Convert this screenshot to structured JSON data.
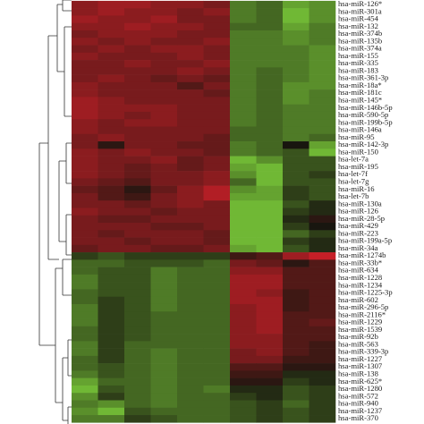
{
  "chart_data": {
    "type": "heatmap",
    "rows": [
      "hsa-miR-126*",
      "hsa-miR-301a",
      "hsa-miR-454",
      "hsa-miR-132",
      "hsa-miR-374b",
      "hsa-miR-135b",
      "hsa-miR-374a",
      "hsa-miR-155",
      "hsa-miR-335",
      "hsa-miR-183",
      "hsa-miR-361-3p",
      "hsa-miR-18a*",
      "hsa-miR-181c",
      "hsa-miR-145*",
      "hsa-miR-146b-5p",
      "hsa-miR-590-5p",
      "hsa-miR-199b-5p",
      "hsa-miR-146a",
      "hsa-miR-95",
      "hsa-miR-142-3p",
      "hsa-miR-150",
      "hsa-let-7a",
      "hsa-miR-195",
      "hsa-let-7f",
      "hsa-let-7g",
      "hsa-miR-16",
      "hsa-let-7b",
      "hsa-miR-130a",
      "hsa-miR-126",
      "hsa-miR-28-5p",
      "hsa-miR-429",
      "hsa-miR-223",
      "hsa-miR-199a-5p",
      "hsa-miR-34a",
      "hsa-miR-1274b",
      "hsa-miR-33b*",
      "hsa-miR-634",
      "hsa-miR-1228",
      "hsa-miR-1234",
      "hsa-miR-1225-3p",
      "hsa-miR-602",
      "hsa-miR-296-5p",
      "hsa-miR-2116*",
      "hsa-miR-1229",
      "hsa-miR-1539",
      "hsa-miR-92b",
      "hsa-miR-563",
      "hsa-miR-339-3p",
      "hsa-miR-1227",
      "hsa-miR-1307",
      "hsa-miR-138",
      "hsa-miR-625*",
      "hsa-miR-1280",
      "hsa-miR-572",
      "hsa-miR-940",
      "hsa-miR-1237",
      "hsa-miR-370"
    ],
    "values": [
      [
        0.6,
        0.7,
        0.7,
        0.6,
        0.6,
        0.5,
        -0.5,
        -0.4,
        -0.7,
        -0.6
      ],
      [
        0.6,
        0.7,
        0.6,
        0.6,
        0.5,
        0.6,
        -0.5,
        -0.4,
        -0.8,
        -0.6
      ],
      [
        0.7,
        0.6,
        0.6,
        0.7,
        0.5,
        0.5,
        -0.5,
        -0.4,
        -0.8,
        -0.6
      ],
      [
        0.6,
        0.6,
        0.7,
        0.6,
        0.6,
        0.5,
        -0.4,
        -0.4,
        -0.7,
        -0.5
      ],
      [
        0.5,
        0.6,
        0.6,
        0.6,
        0.5,
        0.5,
        -0.5,
        -0.5,
        -0.6,
        -0.5
      ],
      [
        0.6,
        0.5,
        0.6,
        0.5,
        0.5,
        0.6,
        -0.5,
        -0.5,
        -0.6,
        -0.5
      ],
      [
        0.5,
        0.6,
        0.5,
        0.6,
        0.6,
        0.5,
        -0.5,
        -0.5,
        -0.5,
        -0.6
      ],
      [
        0.6,
        0.5,
        0.5,
        0.5,
        0.6,
        0.5,
        -0.5,
        -0.5,
        -0.5,
        -0.6
      ],
      [
        0.5,
        0.5,
        0.6,
        0.5,
        0.5,
        0.6,
        -0.5,
        -0.5,
        -0.5,
        -0.6
      ],
      [
        0.5,
        0.5,
        0.5,
        0.5,
        0.6,
        0.5,
        -0.5,
        -0.4,
        -0.5,
        -0.6
      ],
      [
        0.5,
        0.6,
        0.5,
        0.4,
        0.5,
        0.4,
        -0.5,
        -0.4,
        -0.5,
        -0.6
      ],
      [
        0.6,
        0.5,
        0.5,
        0.5,
        0.3,
        0.5,
        -0.5,
        -0.4,
        -0.6,
        -0.6
      ],
      [
        0.6,
        0.5,
        0.5,
        0.5,
        0.5,
        0.4,
        -0.5,
        -0.4,
        -0.6,
        -0.5
      ],
      [
        0.7,
        0.6,
        0.5,
        0.5,
        0.5,
        0.5,
        -0.5,
        -0.4,
        -0.6,
        -0.5
      ],
      [
        0.7,
        0.6,
        0.6,
        0.6,
        0.5,
        0.5,
        -0.5,
        -0.4,
        -0.5,
        -0.5
      ],
      [
        0.7,
        0.6,
        0.5,
        0.6,
        0.5,
        0.5,
        -0.5,
        -0.4,
        -0.5,
        -0.5
      ],
      [
        0.6,
        0.5,
        0.6,
        0.6,
        0.5,
        0.5,
        -0.5,
        -0.4,
        -0.5,
        -0.5
      ],
      [
        0.6,
        0.5,
        0.5,
        0.5,
        0.5,
        0.5,
        -0.4,
        -0.4,
        -0.5,
        -0.5
      ],
      [
        0.5,
        0.6,
        0.5,
        0.5,
        0.5,
        0.4,
        -0.4,
        -0.4,
        -0.5,
        -0.4
      ],
      [
        0.5,
        0.1,
        0.5,
        0.5,
        0.4,
        0.4,
        -0.5,
        -0.4,
        0,
        -0.7
      ],
      [
        0.6,
        0.5,
        0.6,
        0.5,
        0.5,
        0.4,
        -0.5,
        -0.4,
        -0.3,
        -0.8
      ],
      [
        0.6,
        0.5,
        0.5,
        0.6,
        0.4,
        0.5,
        -0.8,
        -0.6,
        -0.3,
        -0.3
      ],
      [
        0.6,
        0.5,
        0.4,
        0.5,
        0.4,
        0.5,
        -0.7,
        -0.8,
        -0.3,
        -0.3
      ],
      [
        0.6,
        0.5,
        0.4,
        0.5,
        0.5,
        0.6,
        -0.6,
        -0.8,
        -0.3,
        -0.2
      ],
      [
        0.5,
        0.4,
        0.3,
        0.5,
        0.5,
        0.6,
        -0.4,
        -0.8,
        -0.3,
        -0.3
      ],
      [
        0.4,
        0.3,
        0.1,
        0.4,
        0.6,
        0.8,
        -0.6,
        -0.7,
        -0.2,
        -0.3
      ],
      [
        0.5,
        0.3,
        0.2,
        0.5,
        0.6,
        0.8,
        -0.7,
        -0.7,
        -0.2,
        -0.3
      ],
      [
        0.5,
        0.5,
        0.4,
        0.5,
        0.6,
        0.5,
        -0.8,
        -0.8,
        -0.3,
        -0.1
      ],
      [
        0.6,
        0.5,
        0.5,
        0.4,
        0.5,
        0.5,
        -0.8,
        -0.8,
        -0.2,
        -0.1
      ],
      [
        0.5,
        0.4,
        0.4,
        0.5,
        0.5,
        0.5,
        -0.8,
        -0.8,
        -0.1,
        0.1
      ],
      [
        0.5,
        0.5,
        0.5,
        0.4,
        0.4,
        0.5,
        -0.8,
        -0.8,
        -0.2,
        0
      ],
      [
        0.5,
        0.4,
        0.5,
        0.5,
        0.5,
        0.4,
        -0.8,
        -0.8,
        -0.4,
        -0.2
      ],
      [
        0.5,
        0.5,
        0.4,
        0.5,
        0.5,
        0.4,
        -0.8,
        -0.8,
        -0.2,
        -0.1
      ],
      [
        0.4,
        0.5,
        0.5,
        0.4,
        0.4,
        0.5,
        -0.7,
        -0.8,
        -0.3,
        -0.1
      ],
      [
        -0.2,
        -0.3,
        -0.2,
        -0.2,
        -0.2,
        -0.2,
        0.2,
        0.3,
        0.7,
        0.9
      ],
      [
        -0.4,
        -0.4,
        -0.3,
        -0.3,
        -0.3,
        -0.4,
        0.5,
        0.4,
        0.1,
        0.3
      ],
      [
        -0.4,
        -0.3,
        -0.3,
        -0.5,
        -0.4,
        -0.4,
        0.6,
        0.6,
        0.3,
        0.3
      ],
      [
        -0.5,
        -0.3,
        -0.3,
        -0.5,
        -0.4,
        -0.4,
        0.7,
        0.7,
        0.3,
        0.3
      ],
      [
        -0.5,
        -0.3,
        -0.3,
        -0.5,
        -0.4,
        -0.4,
        0.7,
        0.7,
        0.3,
        0.3
      ],
      [
        -0.4,
        -0.3,
        -0.3,
        -0.5,
        -0.4,
        -0.4,
        0.7,
        0.6,
        0.2,
        0.3
      ],
      [
        -0.4,
        -0.2,
        -0.3,
        -0.5,
        -0.4,
        -0.4,
        0.7,
        0.7,
        0.2,
        0.3
      ],
      [
        -0.5,
        -0.2,
        -0.3,
        -0.5,
        -0.4,
        -0.4,
        0.6,
        0.7,
        0.2,
        0.3
      ],
      [
        -0.5,
        -0.2,
        -0.3,
        -0.4,
        -0.4,
        -0.4,
        0.6,
        0.7,
        0.3,
        0.3
      ],
      [
        -0.5,
        -0.2,
        -0.3,
        -0.4,
        -0.4,
        -0.4,
        0.6,
        0.7,
        0.3,
        0.4
      ],
      [
        -0.4,
        -0.2,
        -0.3,
        -0.4,
        -0.4,
        -0.4,
        0.6,
        0.7,
        0.3,
        0.3
      ],
      [
        -0.4,
        -0.2,
        -0.3,
        -0.4,
        -0.4,
        -0.4,
        0.6,
        0.6,
        0.3,
        0.3
      ],
      [
        -0.5,
        -0.2,
        -0.4,
        -0.4,
        -0.4,
        -0.4,
        0.6,
        0.6,
        0.3,
        0.2
      ],
      [
        -0.5,
        -0.2,
        -0.4,
        -0.5,
        -0.4,
        -0.4,
        0.5,
        0.6,
        0.3,
        0.2
      ],
      [
        -0.4,
        -0.2,
        -0.4,
        -0.5,
        -0.4,
        -0.4,
        0.5,
        0.5,
        0.2,
        0.2
      ],
      [
        -0.4,
        -0.3,
        -0.4,
        -0.5,
        -0.4,
        -0.4,
        0.3,
        0.3,
        0.1,
        0.1
      ],
      [
        -0.5,
        -0.3,
        -0.4,
        -0.5,
        -0.4,
        -0.4,
        0.2,
        0.2,
        -0.1,
        -0.1
      ],
      [
        -0.7,
        -0.4,
        -0.4,
        -0.5,
        -0.4,
        -0.4,
        0.1,
        0.1,
        -0.2,
        -0.1
      ],
      [
        -0.8,
        -0.3,
        -0.4,
        -0.5,
        -0.4,
        -0.5,
        -0.1,
        -0.1,
        -0.3,
        -0.2
      ],
      [
        -0.6,
        -0.2,
        -0.4,
        -0.5,
        -0.4,
        -0.4,
        -0.2,
        -0.1,
        -0.3,
        -0.2
      ],
      [
        -0.5,
        -0.6,
        -0.4,
        -0.5,
        -0.4,
        -0.4,
        -0.3,
        -0.2,
        -0.4,
        -0.2
      ],
      [
        -0.6,
        -0.8,
        -0.3,
        -0.4,
        -0.4,
        -0.4,
        -0.3,
        -0.2,
        -0.3,
        -0.2
      ],
      [
        -0.5,
        -0.5,
        -0.2,
        -0.3,
        -0.4,
        -0.4,
        -0.3,
        -0.2,
        -0.3,
        -0.2
      ]
    ],
    "zlim": [
      -1,
      1
    ],
    "colors": {
      "low": "#86e03e",
      "mid": "#18160f",
      "high": "#d8202a"
    }
  }
}
